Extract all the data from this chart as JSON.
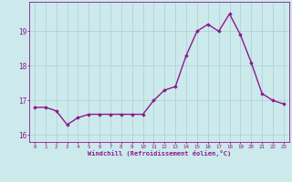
{
  "x": [
    0,
    1,
    2,
    3,
    4,
    5,
    6,
    7,
    8,
    9,
    10,
    11,
    12,
    13,
    14,
    15,
    16,
    17,
    18,
    19,
    20,
    21,
    22,
    23
  ],
  "y": [
    16.8,
    16.8,
    16.7,
    16.3,
    16.5,
    16.6,
    16.6,
    16.6,
    16.6,
    16.6,
    16.6,
    17.0,
    17.3,
    17.4,
    18.3,
    19.0,
    19.2,
    19.0,
    19.5,
    18.9,
    18.1,
    17.2,
    17.0,
    16.9
  ],
  "line_color": "#8b1a8b",
  "marker": "D",
  "marker_size": 1.8,
  "linewidth": 1.0,
  "bg_color": "#cce9ec",
  "grid_color": "#b0d4d8",
  "xlabel": "Windchill (Refroidissement éolien,°C)",
  "xlabel_color": "#8b1a8b",
  "tick_color": "#8b1a8b",
  "spine_color": "#8b1a8b",
  "ylim": [
    15.8,
    19.85
  ],
  "xlim": [
    -0.5,
    23.5
  ],
  "yticks": [
    16,
    17,
    18,
    19
  ],
  "xticks": [
    0,
    1,
    2,
    3,
    4,
    5,
    6,
    7,
    8,
    9,
    10,
    11,
    12,
    13,
    14,
    15,
    16,
    17,
    18,
    19,
    20,
    21,
    22,
    23
  ]
}
